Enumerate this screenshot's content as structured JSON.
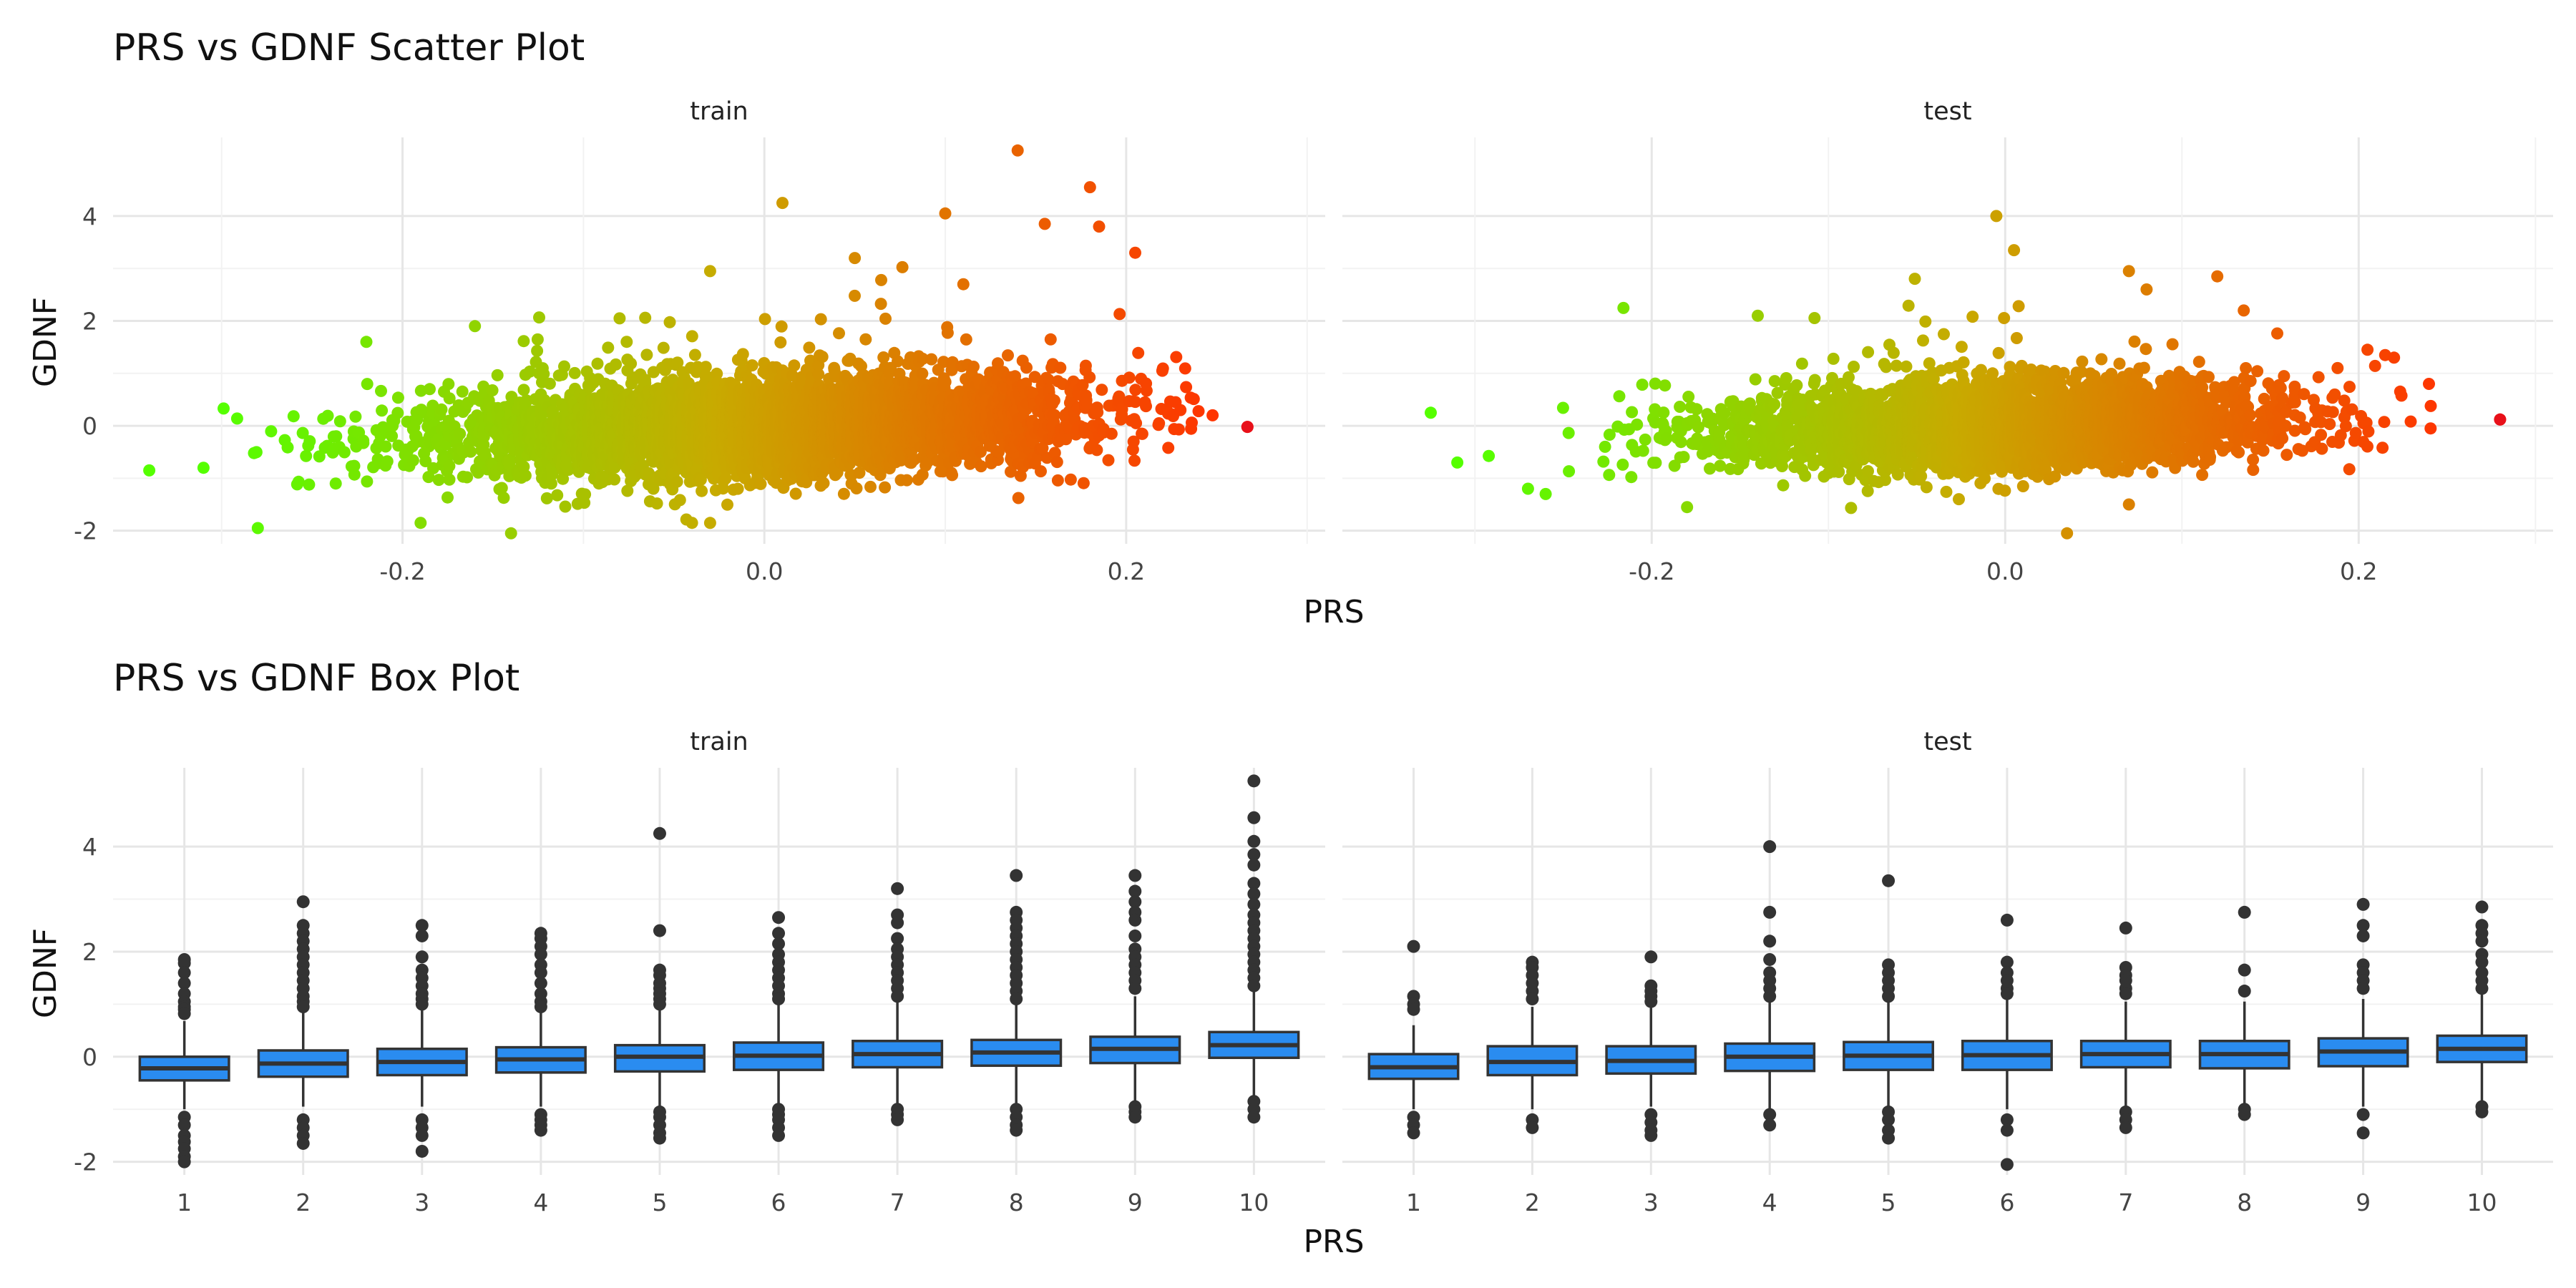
{
  "figure": {
    "scatter_title": "PRS vs GDNF Scatter Plot",
    "box_title": "PRS vs GDNF Box Plot",
    "xlabel": "PRS",
    "ylabel": "GDNF",
    "panels": [
      "train",
      "test"
    ],
    "colors": {
      "low": "#55ff00",
      "mid": "#c8aa00",
      "high": "#ff3300",
      "extreme": "#e8101a",
      "box_fill": "#2a8cf0",
      "box_line": "#333333",
      "outlier": "#333333",
      "grid_major": "#e6e6e6",
      "grid_minor": "#f2f2f2"
    }
  },
  "chart_data": [
    {
      "type": "scatter",
      "title": "PRS vs GDNF Scatter Plot",
      "xlabel": "PRS",
      "ylabel": "GDNF",
      "x_ticks": [
        -0.2,
        0.0,
        0.2
      ],
      "y_ticks": [
        -2,
        0,
        2,
        4
      ],
      "ylim": [
        -2.25,
        5.5
      ],
      "grid": true,
      "color_scale": "green-to-red by PRS",
      "panels": [
        {
          "name": "train",
          "xlim": [
            -0.36,
            0.31
          ],
          "x_center_mean": 0.0,
          "x_spread": 0.085,
          "slope": 3.3,
          "noise": 0.45,
          "highlight_points": [
            [
              0.14,
              5.25
            ],
            [
              0.18,
              4.55
            ],
            [
              0.01,
              4.25
            ],
            [
              0.1,
              4.05
            ],
            [
              0.155,
              3.85
            ],
            [
              0.185,
              3.8
            ],
            [
              0.205,
              3.3
            ],
            [
              0.05,
              3.2
            ],
            [
              -0.03,
              2.95
            ],
            [
              0.11,
              2.7
            ],
            [
              -0.16,
              1.9
            ],
            [
              -0.08,
              2.05
            ],
            [
              -0.22,
              1.6
            ],
            [
              0.267,
              -0.02
            ],
            [
              -0.34,
              -0.85
            ],
            [
              -0.31,
              -0.8
            ],
            [
              -0.28,
              -1.95
            ],
            [
              -0.14,
              -2.05
            ],
            [
              -0.19,
              -1.85
            ],
            [
              -0.04,
              -1.85
            ],
            [
              0.22,
              1.05
            ],
            [
              0.23,
              0.3
            ],
            [
              0.24,
              0.28
            ]
          ]
        },
        {
          "name": "test",
          "xlim": [
            -0.375,
            0.31
          ],
          "x_center_mean": 0.0,
          "x_spread": 0.08,
          "slope": 2.6,
          "noise": 0.4,
          "highlight_points": [
            [
              -0.005,
              4.0
            ],
            [
              0.005,
              3.35
            ],
            [
              -0.14,
              2.1
            ],
            [
              0.12,
              2.85
            ],
            [
              0.07,
              2.95
            ],
            [
              0.08,
              2.6
            ],
            [
              -0.325,
              0.25
            ],
            [
              0.28,
              0.12
            ],
            [
              0.205,
              1.45
            ],
            [
              0.215,
              1.35
            ],
            [
              0.22,
              1.3
            ],
            [
              0.035,
              -2.05
            ],
            [
              -0.31,
              -0.7
            ],
            [
              -0.27,
              -1.2
            ],
            [
              -0.26,
              -1.3
            ],
            [
              -0.18,
              -1.55
            ],
            [
              0.135,
              2.2
            ],
            [
              0.07,
              -1.5
            ]
          ]
        }
      ]
    },
    {
      "type": "box",
      "title": "PRS vs GDNF Box Plot",
      "xlabel": "PRS",
      "ylabel": "GDNF",
      "categories": [
        "1",
        "2",
        "3",
        "4",
        "5",
        "6",
        "7",
        "8",
        "9",
        "10"
      ],
      "y_ticks": [
        -2,
        0,
        2,
        4
      ],
      "ylim": [
        -2.25,
        5.5
      ],
      "grid": true,
      "panels": [
        {
          "name": "train",
          "boxes": [
            {
              "q1": -0.45,
              "median": -0.22,
              "q3": 0.0,
              "lo": -1.0,
              "hi": 0.68,
              "outliers": [
                1.85,
                1.78,
                1.6,
                1.4,
                1.2,
                1.05,
                0.95,
                0.9,
                0.82,
                -1.15,
                -1.3,
                -1.5,
                -1.62,
                -1.75,
                -1.9,
                -2.0
              ]
            },
            {
              "q1": -0.38,
              "median": -0.13,
              "q3": 0.12,
              "lo": -0.95,
              "hi": 0.85,
              "outliers": [
                2.95,
                2.5,
                2.35,
                2.2,
                2.05,
                1.9,
                1.75,
                1.6,
                1.45,
                1.3,
                1.15,
                1.05,
                0.95,
                -1.2,
                -1.35,
                -1.5,
                -1.65
              ]
            },
            {
              "q1": -0.35,
              "median": -0.1,
              "q3": 0.15,
              "lo": -0.95,
              "hi": 0.95,
              "outliers": [
                2.5,
                2.3,
                1.9,
                1.65,
                1.5,
                1.35,
                1.2,
                1.1,
                1.0,
                -1.2,
                -1.35,
                -1.5,
                -1.8
              ]
            },
            {
              "q1": -0.3,
              "median": -0.05,
              "q3": 0.18,
              "lo": -0.95,
              "hi": 0.9,
              "outliers": [
                2.35,
                2.25,
                2.1,
                1.95,
                1.75,
                1.6,
                1.4,
                1.2,
                1.05,
                0.95,
                -1.1,
                -1.2,
                -1.3,
                -1.4
              ]
            },
            {
              "q1": -0.28,
              "median": 0.0,
              "q3": 0.22,
              "lo": -0.95,
              "hi": 0.95,
              "outliers": [
                4.25,
                2.4,
                1.65,
                1.55,
                1.4,
                1.3,
                1.2,
                1.1,
                1.0,
                -1.05,
                -1.15,
                -1.3,
                -1.45,
                -1.55
              ]
            },
            {
              "q1": -0.25,
              "median": 0.02,
              "q3": 0.27,
              "lo": -0.95,
              "hi": 1.0,
              "outliers": [
                2.65,
                2.35,
                2.15,
                1.95,
                1.8,
                1.65,
                1.5,
                1.35,
                1.2,
                1.1,
                -1.0,
                -1.1,
                -1.2,
                -1.35,
                -1.5
              ]
            },
            {
              "q1": -0.2,
              "median": 0.05,
              "q3": 0.3,
              "lo": -0.95,
              "hi": 1.05,
              "outliers": [
                3.2,
                2.7,
                2.55,
                2.25,
                2.05,
                1.9,
                1.75,
                1.6,
                1.45,
                1.3,
                1.15,
                -1.0,
                -1.1,
                -1.2
              ]
            },
            {
              "q1": -0.17,
              "median": 0.08,
              "q3": 0.32,
              "lo": -0.9,
              "hi": 1.05,
              "outliers": [
                3.45,
                2.75,
                2.6,
                2.45,
                2.3,
                2.15,
                2.0,
                1.85,
                1.7,
                1.55,
                1.4,
                1.25,
                1.1,
                -1.0,
                -1.15,
                -1.3,
                -1.4
              ]
            },
            {
              "q1": -0.12,
              "median": 0.15,
              "q3": 0.38,
              "lo": -0.85,
              "hi": 1.15,
              "outliers": [
                3.45,
                3.15,
                2.95,
                2.75,
                2.6,
                2.3,
                2.05,
                1.9,
                1.75,
                1.6,
                1.45,
                1.3,
                -0.95,
                -1.05,
                -1.15
              ]
            },
            {
              "q1": -0.02,
              "median": 0.22,
              "q3": 0.47,
              "lo": -0.75,
              "hi": 1.25,
              "outliers": [
                5.25,
                4.55,
                4.1,
                3.85,
                3.65,
                3.3,
                3.1,
                2.9,
                2.7,
                2.55,
                2.4,
                2.25,
                2.1,
                1.95,
                1.8,
                1.65,
                1.5,
                1.35,
                -0.85,
                -1.0,
                -1.15
              ]
            }
          ]
        },
        {
          "name": "test",
          "boxes": [
            {
              "q1": -0.42,
              "median": -0.2,
              "q3": 0.05,
              "lo": -1.0,
              "hi": 0.6,
              "outliers": [
                2.1,
                1.15,
                1.0,
                0.9,
                -1.15,
                -1.3,
                -1.45
              ]
            },
            {
              "q1": -0.35,
              "median": -0.1,
              "q3": 0.2,
              "lo": -1.0,
              "hi": 0.95,
              "outliers": [
                1.8,
                1.7,
                1.55,
                1.4,
                1.25,
                1.1,
                -1.2,
                -1.35
              ]
            },
            {
              "q1": -0.32,
              "median": -0.08,
              "q3": 0.2,
              "lo": -0.95,
              "hi": 0.95,
              "outliers": [
                1.9,
                1.35,
                1.25,
                1.15,
                1.05,
                -1.1,
                -1.25,
                -1.4,
                -1.5
              ]
            },
            {
              "q1": -0.27,
              "median": 0.0,
              "q3": 0.25,
              "lo": -1.0,
              "hi": 1.05,
              "outliers": [
                4.0,
                2.75,
                2.2,
                1.85,
                1.6,
                1.45,
                1.3,
                1.15,
                -1.1,
                -1.3
              ]
            },
            {
              "q1": -0.25,
              "median": 0.02,
              "q3": 0.28,
              "lo": -0.95,
              "hi": 1.05,
              "outliers": [
                3.35,
                1.75,
                1.6,
                1.45,
                1.3,
                1.15,
                -1.05,
                -1.2,
                -1.4,
                -1.55
              ]
            },
            {
              "q1": -0.25,
              "median": 0.03,
              "q3": 0.3,
              "lo": -1.0,
              "hi": 1.1,
              "outliers": [
                2.6,
                1.8,
                1.6,
                1.45,
                1.3,
                1.2,
                -1.2,
                -1.4,
                -2.05
              ]
            },
            {
              "q1": -0.2,
              "median": 0.05,
              "q3": 0.3,
              "lo": -0.95,
              "hi": 1.05,
              "outliers": [
                2.45,
                1.7,
                1.55,
                1.45,
                1.3,
                1.2,
                -1.05,
                -1.2,
                -1.35
              ]
            },
            {
              "q1": -0.22,
              "median": 0.05,
              "q3": 0.3,
              "lo": -0.95,
              "hi": 1.05,
              "outliers": [
                2.75,
                1.65,
                1.25,
                -1.0,
                -1.1
              ]
            },
            {
              "q1": -0.18,
              "median": 0.1,
              "q3": 0.35,
              "lo": -0.95,
              "hi": 1.1,
              "outliers": [
                2.9,
                2.5,
                2.3,
                1.75,
                1.6,
                1.45,
                1.3,
                -1.1,
                -1.45
              ]
            },
            {
              "q1": -0.1,
              "median": 0.15,
              "q3": 0.4,
              "lo": -0.85,
              "hi": 1.2,
              "outliers": [
                2.85,
                2.5,
                2.35,
                2.2,
                1.95,
                1.8,
                1.6,
                1.45,
                1.3,
                -0.95,
                -1.05
              ]
            }
          ]
        }
      ]
    }
  ]
}
